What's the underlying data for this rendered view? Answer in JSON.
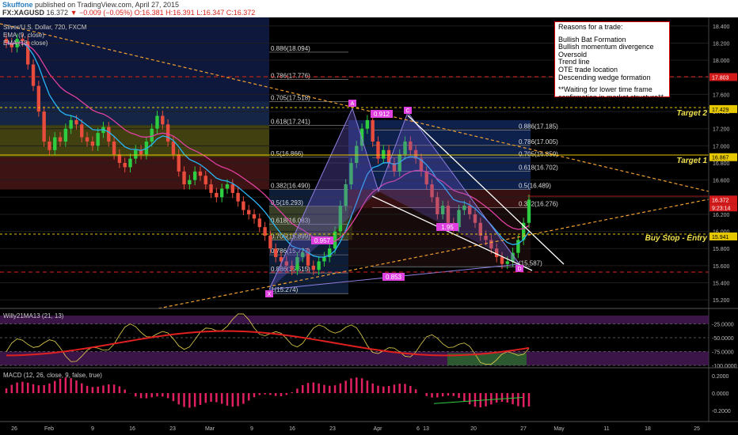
{
  "header": {
    "author": "Skuffone",
    "published": "published on TradingView.com, April 27, 2015",
    "symbol": "FX:XAGUSD",
    "last": "16.372",
    "change": "−0.009 (−0.05%)",
    "o": "O:16.381",
    "h": "H:16.391",
    "l": "L:16.347",
    "c": "C:16.372"
  },
  "legend": {
    "title": "Silver/U.S. Dollar, 720, FXCM",
    "ema9": "EMA (9, close)",
    "ema18": "EMA (18, close)"
  },
  "reasons": {
    "title": "Reasons for a trade:",
    "items": [
      "Bullish Bat Formation",
      "Bullish momentum divergence",
      "Oversold",
      "Trend line",
      "OTE trade location",
      "Descending wedge formation"
    ],
    "blank": "",
    "note1": "**Waiting for lower time frame",
    "note2": "confirmation in market structure**"
  },
  "annotations": {
    "target2": "Target 2",
    "target1": "Target 1",
    "buy_stop": "Buy Stop - Entry",
    "points": [
      "X",
      "A",
      "C",
      "D"
    ],
    "ratios": [
      "0.912",
      "0.957",
      "0.853",
      "1.95"
    ]
  },
  "fib_left": [
    {
      "label": "0.886(18.094)",
      "price": 18.094
    },
    {
      "label": "0.786(17.776)",
      "price": 17.776
    },
    {
      "label": "0.705(17.518)",
      "price": 17.518
    },
    {
      "label": "0.618(17.241)",
      "price": 17.241
    },
    {
      "label": "0.5(16.866)",
      "price": 16.866
    },
    {
      "label": "0.382(16.490)",
      "price": 16.49
    },
    {
      "label": "0.5(16.293)",
      "price": 16.293
    },
    {
      "label": "0.618(16.083)",
      "price": 16.083
    },
    {
      "label": "0.705(15.899)",
      "price": 15.899
    },
    {
      "label": "0.786(15.727)",
      "price": 15.727
    },
    {
      "label": "0.886(15.515)",
      "price": 15.515
    },
    {
      "label": "1(15.274)",
      "price": 15.274
    }
  ],
  "fib_right": [
    {
      "label": "0.886(17.185)",
      "price": 17.185
    },
    {
      "label": "0.786(17.005)",
      "price": 17.005
    },
    {
      "label": "0.705(16.859)",
      "price": 16.859
    },
    {
      "label": "0.618(16.702)",
      "price": 16.702
    },
    {
      "label": "0.5(16.489)",
      "price": 16.489
    },
    {
      "label": "0.382(16.276)",
      "price": 16.276
    },
    {
      "label": "(15.587)",
      "price": 15.587
    }
  ],
  "price_tags": [
    {
      "label": "17.803",
      "price": 17.803,
      "color": "#d21a1a"
    },
    {
      "label": "17.429",
      "price": 17.429,
      "color": "#e6c800"
    },
    {
      "label": "16.867",
      "price": 16.867,
      "color": "#e6c800"
    },
    {
      "label": "16.372",
      "price": 16.372,
      "color": "#d21a1a"
    },
    {
      "label": "9:23:14",
      "price": 16.28,
      "color": "#d21a1a"
    },
    {
      "label": "15.941",
      "price": 15.941,
      "color": "#e6c800"
    }
  ],
  "panels": {
    "willy": {
      "title": "Willy21MA13 (21, 13)",
      "ticks": [
        "-25.0000",
        "-50.0000",
        "-75.0000",
        "-100.0000"
      ]
    },
    "macd": {
      "title": "MACD (12, 26, close, 9, false, true)",
      "ticks": [
        "0.2000",
        "0.0000",
        "-0.2000"
      ]
    }
  },
  "chart_data": {
    "type": "candlestick",
    "title": "Silver/U.S. Dollar, 720, FXCM",
    "ylim": [
      15.1,
      18.5
    ],
    "y_ticks": [
      18.4,
      18.2,
      18.0,
      17.8,
      17.6,
      17.4,
      17.2,
      17.0,
      16.8,
      16.6,
      16.4,
      16.2,
      16.0,
      15.8,
      15.6,
      15.4,
      15.2
    ],
    "x_ticks": [
      "26",
      "Feb",
      "9",
      "16",
      "23",
      "Mar",
      "9",
      "16",
      "23",
      "Apr",
      "6",
      "13",
      "20",
      "27",
      "May",
      "11",
      "18",
      "25"
    ],
    "closes": [
      18.2,
      18.15,
      18.25,
      18.22,
      17.95,
      17.7,
      17.4,
      17.05,
      16.95,
      17.1,
      17.05,
      17.2,
      17.3,
      17.25,
      17.1,
      17.05,
      17.0,
      17.15,
      17.22,
      17.05,
      16.9,
      16.8,
      16.75,
      16.85,
      16.95,
      16.9,
      17.05,
      17.2,
      17.35,
      17.25,
      17.05,
      16.9,
      16.7,
      16.55,
      16.6,
      16.7,
      16.65,
      16.55,
      16.45,
      16.4,
      16.5,
      16.55,
      16.45,
      16.35,
      16.25,
      16.2,
      16.15,
      16.05,
      15.95,
      15.8,
      15.7,
      15.65,
      15.6,
      15.55,
      15.7,
      15.75,
      15.6,
      15.55,
      15.65,
      15.7,
      15.8,
      16.0,
      16.3,
      16.55,
      16.8,
      17.0,
      17.2,
      17.3,
      17.05,
      16.85,
      16.95,
      16.8,
      16.7,
      16.9,
      17.05,
      16.95,
      16.85,
      16.7,
      16.55,
      16.4,
      16.2,
      16.3,
      16.1,
      16.05,
      16.25,
      16.3,
      16.2,
      16.1,
      15.95,
      15.9,
      15.8,
      15.7,
      15.62,
      15.65,
      15.75,
      15.9,
      16.1,
      16.37
    ],
    "ema9_color": "#29b6f6",
    "ema18_color": "#e040a0",
    "trend_lines": "orange dashed, white wedge"
  }
}
